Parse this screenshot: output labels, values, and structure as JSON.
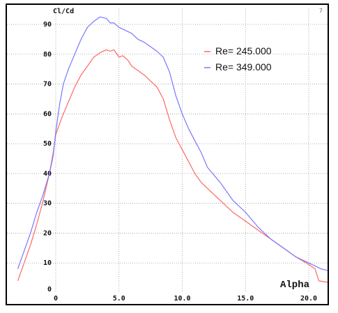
{
  "chart_data": {
    "type": "line",
    "ylabel": "Cl/Cd",
    "xlabel": "Alpha",
    "corner_mark": "7",
    "xlim": [
      -3.0,
      21.5
    ],
    "ylim": [
      0,
      95
    ],
    "x_ticks": [
      0,
      5,
      10,
      15,
      20
    ],
    "x_tick_labels": [
      "0",
      "5.0",
      "10.0",
      "15.0",
      "20.0"
    ],
    "y_ticks": [
      0,
      10,
      20,
      30,
      40,
      50,
      60,
      70,
      80,
      90
    ],
    "y_tick_labels": [
      "0",
      "10",
      "20",
      "30",
      "40",
      "50",
      "60",
      "70",
      "80",
      "90"
    ],
    "grid": true,
    "legend_position": "top-right",
    "series": [
      {
        "name": "Re= 245.000",
        "color": "#ff6666",
        "x": [
          -3,
          -2.5,
          -2,
          -1.5,
          -1,
          -0.5,
          -0.2,
          0,
          0.5,
          1,
          1.5,
          2,
          2.5,
          3,
          3.5,
          4,
          4.3,
          4.6,
          5,
          5.3,
          5.7,
          6,
          6.5,
          7,
          7.5,
          8,
          8.5,
          9,
          9.5,
          10,
          10.5,
          11,
          11.5,
          12,
          13,
          14,
          15,
          16,
          17,
          18,
          19,
          20,
          20.5,
          20.8,
          21.5
        ],
        "y": [
          4,
          10,
          16,
          23,
          31,
          40,
          47,
          53,
          59,
          64,
          69,
          73,
          76,
          79,
          80.5,
          81.5,
          81,
          81.5,
          79,
          79.5,
          78,
          76,
          74.5,
          73,
          71,
          69,
          65,
          58,
          52,
          48,
          44,
          40,
          37,
          35,
          31,
          27,
          24,
          21,
          18,
          15,
          12,
          9.5,
          8,
          4,
          3.5
        ]
      },
      {
        "name": "Re= 349.000",
        "color": "#7777ff",
        "x": [
          -3,
          -2.5,
          -2,
          -1.5,
          -1,
          -0.5,
          -0.2,
          0,
          0.3,
          0.6,
          1,
          1.5,
          2,
          2.5,
          3,
          3.5,
          4,
          4.3,
          4.6,
          5,
          5.5,
          6,
          6.5,
          7,
          7.5,
          8,
          8.5,
          9,
          9.5,
          10,
          10.5,
          11,
          11.5,
          12,
          13,
          14,
          15,
          16,
          17,
          18,
          19,
          20,
          21,
          21.5
        ],
        "y": [
          8,
          14,
          20,
          27,
          33,
          40,
          46,
          54,
          63,
          70,
          75,
          80,
          85,
          89,
          91,
          92.5,
          92,
          90.5,
          90.5,
          89,
          88,
          87,
          85,
          84,
          82.5,
          81,
          79,
          74,
          66,
          60,
          55,
          51,
          47,
          42,
          37,
          31,
          27,
          22,
          18,
          15,
          12,
          10,
          8,
          7.5
        ]
      }
    ]
  }
}
